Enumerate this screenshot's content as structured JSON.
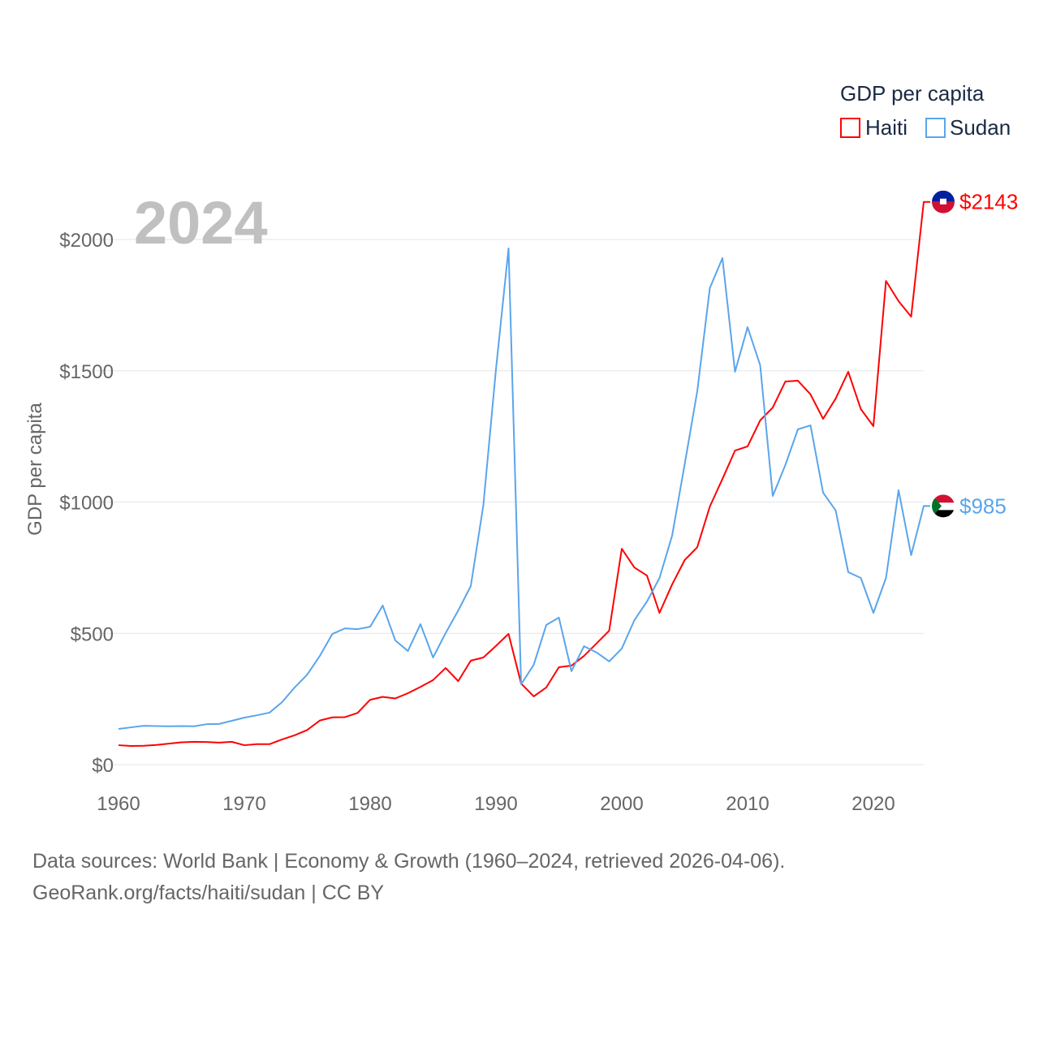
{
  "chart_data": {
    "type": "line",
    "title": "GDP per capita",
    "ylabel": "GDP per capita",
    "xlabel": "",
    "year_label": "2024",
    "xlim": [
      1960,
      2024
    ],
    "ylim": [
      0,
      2000
    ],
    "x_ticks": [
      "1960",
      "1970",
      "1980",
      "1990",
      "2000",
      "2010",
      "2020"
    ],
    "y_ticks": [
      "$0",
      "$500",
      "$1000",
      "$1500",
      "$2000"
    ],
    "grid": true,
    "legend_title": "GDP per capita",
    "legend_position": "top-right",
    "x": [
      1960,
      1961,
      1962,
      1963,
      1964,
      1965,
      1966,
      1967,
      1968,
      1969,
      1970,
      1971,
      1972,
      1973,
      1974,
      1975,
      1976,
      1977,
      1978,
      1979,
      1980,
      1981,
      1982,
      1983,
      1984,
      1985,
      1986,
      1987,
      1988,
      1989,
      1990,
      1991,
      1992,
      1993,
      1994,
      1995,
      1996,
      1997,
      1998,
      1999,
      2000,
      2001,
      2002,
      2003,
      2004,
      2005,
      2006,
      2007,
      2008,
      2009,
      2010,
      2011,
      2012,
      2013,
      2014,
      2015,
      2016,
      2017,
      2018,
      2019,
      2020,
      2021,
      2022,
      2023,
      2024
    ],
    "series": [
      {
        "name": "Haiti",
        "color": "#ff0000",
        "end_label": "$2143",
        "values": [
          74,
          71,
          72,
          75,
          80,
          85,
          87,
          86,
          84,
          87,
          74,
          78,
          78,
          96,
          112,
          132,
          168,
          180,
          181,
          197,
          247,
          258,
          252,
          272,
          296,
          322,
          368,
          318,
          396,
          408,
          452,
          498,
          309,
          260,
          294,
          371,
          377,
          414,
          462,
          510,
          822,
          751,
          720,
          578,
          686,
          779,
          828,
          983,
          1088,
          1196,
          1212,
          1311,
          1360,
          1459,
          1462,
          1410,
          1317,
          1394,
          1496,
          1354,
          1289,
          1842,
          1765,
          1706,
          2143
        ]
      },
      {
        "name": "Sudan",
        "color": "#5aa5ec",
        "end_label": "$985",
        "values": [
          136,
          142,
          148,
          147,
          146,
          147,
          146,
          154,
          155,
          167,
          179,
          188,
          198,
          238,
          294,
          343,
          414,
          498,
          519,
          516,
          525,
          606,
          473,
          433,
          535,
          408,
          501,
          587,
          680,
          989,
          1505,
          1966,
          306,
          380,
          532,
          560,
          356,
          451,
          427,
          393,
          442,
          550,
          621,
          711,
          872,
          1144,
          1422,
          1815,
          1929,
          1496,
          1666,
          1521,
          1023,
          1141,
          1277,
          1292,
          1036,
          968,
          733,
          711,
          578,
          711,
          1045,
          798,
          985
        ]
      }
    ]
  },
  "footer": {
    "line1": "Data sources: World Bank | Economy & Growth (1960–2024, retrieved 2026-04-06).",
    "line2": "GeoRank.org/facts/haiti/sudan | CC BY"
  }
}
